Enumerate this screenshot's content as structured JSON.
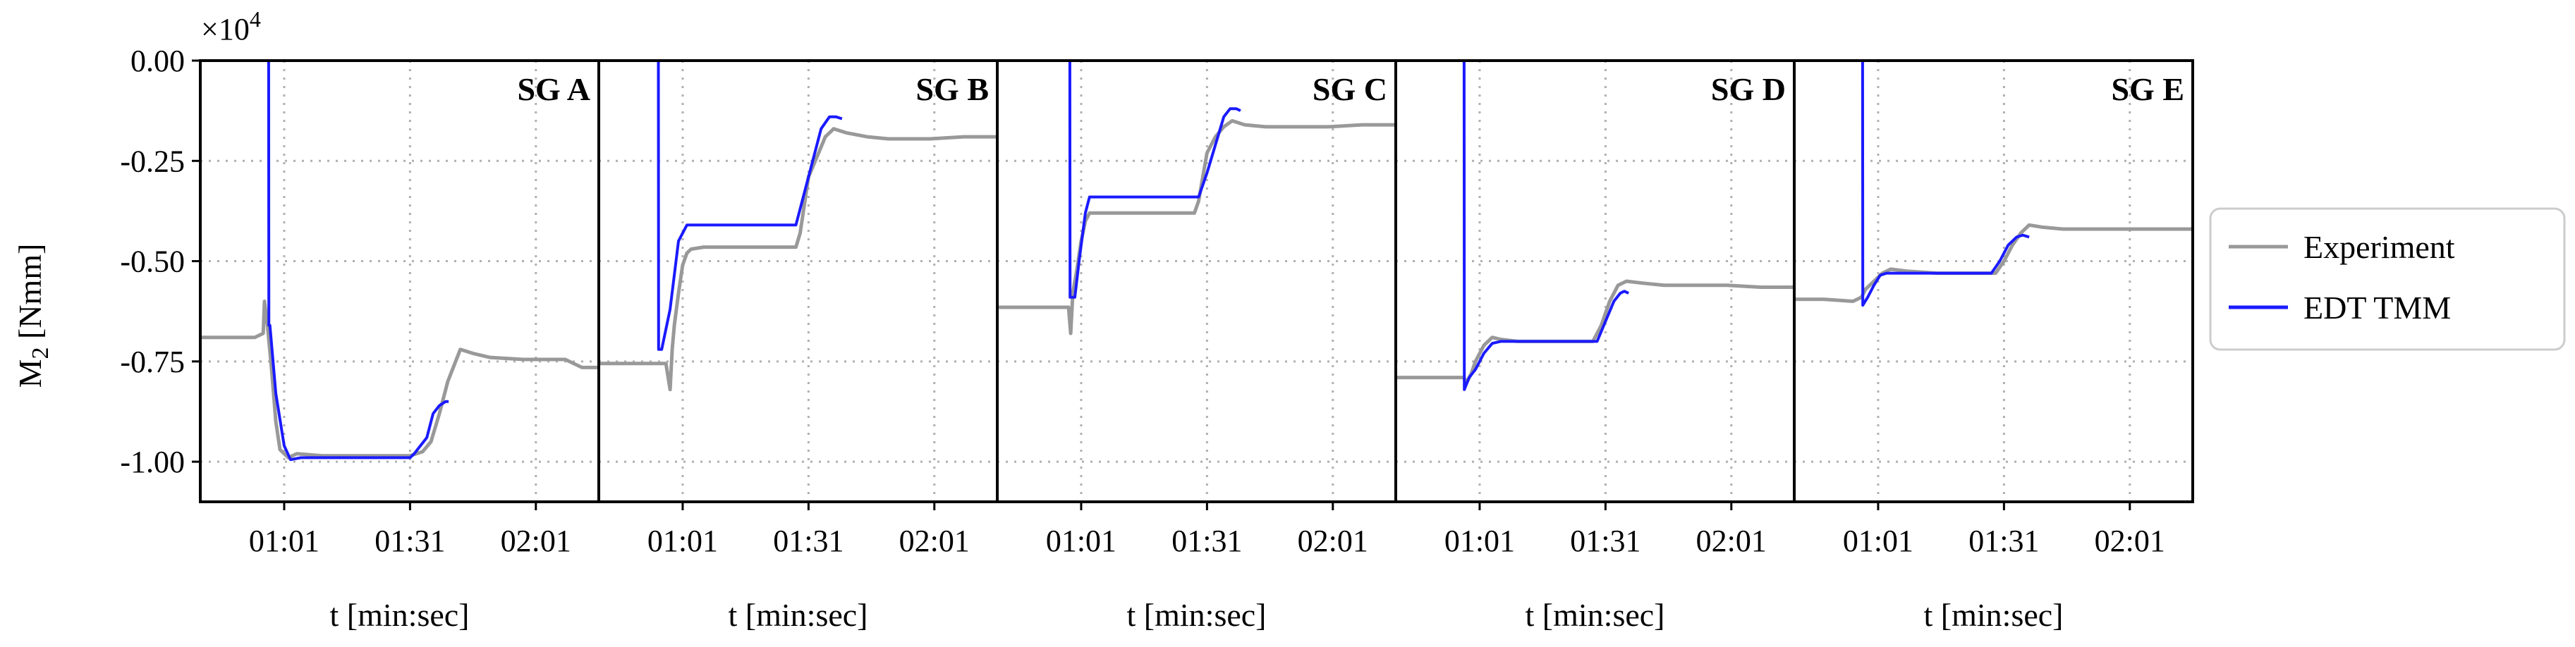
{
  "chart_data": {
    "type": "line",
    "y_label": "M",
    "y_label_sub": "2",
    "y_label_unit": " [Nmm]",
    "y_multiplier_base": "×10",
    "y_multiplier_exp": "4",
    "y_ticks": [
      0.0,
      -0.25,
      -0.5,
      -0.75,
      -1.0
    ],
    "y_tick_labels": [
      "0.00",
      "-0.25",
      "-0.50",
      "-0.75",
      "-1.00"
    ],
    "ylim": [
      -1.1,
      0.0
    ],
    "x_label": "t [min:sec]",
    "x_ticks": [
      61,
      91,
      121
    ],
    "x_tick_labels": [
      "01:01",
      "01:31",
      "02:01"
    ],
    "xlim": [
      41,
      136
    ],
    "grid": true,
    "legend_position": "right",
    "legend": [
      "Experiment",
      "EDT TMM"
    ],
    "colors": {
      "experiment": "#999999",
      "edt_tmm": "#1a1aff"
    },
    "panels": [
      {
        "title": "SG A",
        "experiment": {
          "x": [
            41,
            54,
            56,
            56.3,
            57,
            58,
            59,
            60,
            62,
            64,
            70,
            80,
            91,
            94,
            96,
            98,
            100,
            103,
            106,
            110,
            118,
            122,
            128,
            132,
            136
          ],
          "y": [
            -0.69,
            -0.69,
            -0.68,
            -0.6,
            -0.66,
            -0.77,
            -0.9,
            -0.97,
            -0.99,
            -0.98,
            -0.985,
            -0.985,
            -0.985,
            -0.975,
            -0.95,
            -0.88,
            -0.8,
            -0.72,
            -0.73,
            -0.74,
            -0.745,
            -0.745,
            -0.745,
            -0.765,
            -0.765
          ]
        },
        "edt_tmm": {
          "x": [
            57.3,
            57.35,
            57.6,
            59,
            61,
            62.5,
            65,
            75,
            91,
            92,
            95,
            96.5,
            98,
            99.5,
            100.2
          ],
          "y": [
            0.0,
            -0.66,
            -0.66,
            -0.83,
            -0.96,
            -0.995,
            -0.99,
            -0.99,
            -0.99,
            -0.98,
            -0.94,
            -0.88,
            -0.86,
            -0.85,
            -0.85
          ]
        }
      },
      {
        "title": "SG B",
        "experiment": {
          "x": [
            41,
            52,
            57,
            58,
            58.5,
            59,
            60,
            61,
            62,
            63,
            66,
            70,
            80,
            88,
            89,
            90,
            91,
            93,
            95,
            97,
            100,
            105,
            110,
            120,
            128,
            136
          ],
          "y": [
            -0.755,
            -0.755,
            -0.755,
            -0.82,
            -0.72,
            -0.66,
            -0.58,
            -0.51,
            -0.48,
            -0.47,
            -0.465,
            -0.465,
            -0.465,
            -0.465,
            -0.43,
            -0.36,
            -0.29,
            -0.24,
            -0.19,
            -0.17,
            -0.18,
            -0.19,
            -0.195,
            -0.195,
            -0.19,
            -0.19
          ]
        },
        "edt_tmm": {
          "x": [
            55.2,
            55.25,
            56,
            58,
            60,
            62,
            66,
            75,
            88,
            90,
            92,
            94,
            96,
            97.5,
            99
          ],
          "y": [
            0.0,
            -0.72,
            -0.72,
            -0.62,
            -0.45,
            -0.41,
            -0.41,
            -0.41,
            -0.41,
            -0.33,
            -0.25,
            -0.17,
            -0.14,
            -0.14,
            -0.145
          ]
        }
      },
      {
        "title": "SG C",
        "experiment": {
          "x": [
            41,
            52,
            58,
            58.5,
            59,
            60,
            61,
            62,
            63,
            66,
            70,
            80,
            88,
            89,
            90,
            91,
            93,
            95,
            97,
            100,
            105,
            110,
            120,
            128,
            136
          ],
          "y": [
            -0.615,
            -0.615,
            -0.615,
            -0.68,
            -0.58,
            -0.52,
            -0.45,
            -0.4,
            -0.38,
            -0.38,
            -0.38,
            -0.38,
            -0.38,
            -0.35,
            -0.29,
            -0.23,
            -0.19,
            -0.165,
            -0.15,
            -0.16,
            -0.165,
            -0.165,
            -0.165,
            -0.16,
            -0.16
          ]
        },
        "edt_tmm": {
          "x": [
            58.3,
            58.35,
            59.5,
            60.5,
            62,
            63,
            66,
            75,
            89,
            91,
            93,
            95,
            96.5,
            98,
            99
          ],
          "y": [
            0.0,
            -0.59,
            -0.59,
            -0.5,
            -0.38,
            -0.34,
            -0.34,
            -0.34,
            -0.34,
            -0.28,
            -0.21,
            -0.14,
            -0.12,
            -0.12,
            -0.125
          ]
        }
      },
      {
        "title": "SG D",
        "experiment": {
          "x": [
            41,
            50,
            57,
            58,
            59,
            60,
            62,
            64,
            66,
            70,
            80,
            88,
            90,
            92,
            94,
            96,
            100,
            105,
            110,
            120,
            128,
            136
          ],
          "y": [
            -0.79,
            -0.79,
            -0.79,
            -0.8,
            -0.78,
            -0.75,
            -0.71,
            -0.69,
            -0.695,
            -0.7,
            -0.7,
            -0.7,
            -0.66,
            -0.6,
            -0.56,
            -0.55,
            -0.555,
            -0.56,
            -0.56,
            -0.56,
            -0.565,
            -0.565
          ]
        },
        "edt_tmm": {
          "x": [
            57.3,
            57.35,
            58.5,
            60,
            62,
            64,
            66,
            75,
            89,
            91,
            93,
            94.5,
            95.5,
            96.5
          ],
          "y": [
            0.0,
            -0.82,
            -0.79,
            -0.77,
            -0.73,
            -0.705,
            -0.7,
            -0.7,
            -0.7,
            -0.65,
            -0.6,
            -0.58,
            -0.575,
            -0.58
          ]
        }
      },
      {
        "title": "SG E",
        "experiment": {
          "x": [
            41,
            48,
            55,
            57,
            58,
            60,
            62,
            64,
            68,
            75,
            85,
            89,
            91,
            93,
            95,
            97,
            100,
            105,
            110,
            120,
            128,
            136
          ],
          "y": [
            -0.595,
            -0.595,
            -0.6,
            -0.59,
            -0.57,
            -0.55,
            -0.53,
            -0.52,
            -0.525,
            -0.53,
            -0.53,
            -0.53,
            -0.5,
            -0.46,
            -0.43,
            -0.41,
            -0.415,
            -0.42,
            -0.42,
            -0.42,
            -0.42,
            -0.42
          ]
        },
        "edt_tmm": {
          "x": [
            57.3,
            57.35,
            58.5,
            60,
            61.5,
            63,
            65,
            75,
            88,
            90,
            92,
            94,
            95.5,
            97
          ],
          "y": [
            0.0,
            -0.61,
            -0.59,
            -0.56,
            -0.535,
            -0.53,
            -0.53,
            -0.53,
            -0.53,
            -0.5,
            -0.46,
            -0.44,
            -0.435,
            -0.44
          ]
        }
      }
    ]
  }
}
